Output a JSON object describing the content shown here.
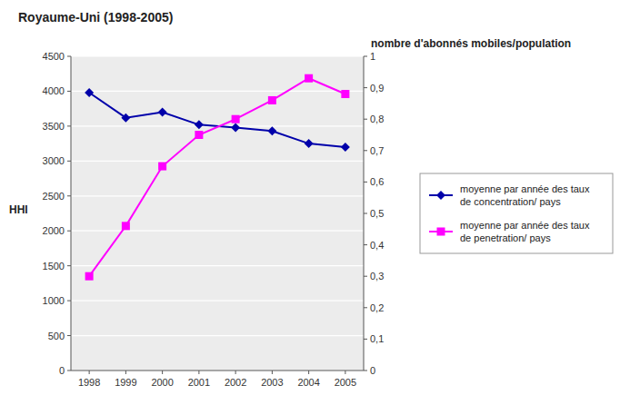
{
  "chart_data": {
    "type": "line",
    "title": "Royaume-Uni (1998-2005)",
    "x": [
      1998,
      1999,
      2000,
      2001,
      2002,
      2003,
      2004,
      2005
    ],
    "xlim": [
      1997.5,
      2005.5
    ],
    "xticks": [
      1998,
      1999,
      2000,
      2001,
      2002,
      2003,
      2004,
      2005
    ],
    "ylabel": "HHI",
    "ylim": [
      0,
      4500
    ],
    "yticks": [
      0,
      500,
      1000,
      1500,
      2000,
      2500,
      3000,
      3500,
      4000,
      4500
    ],
    "y2label": "nombre d'abonnés mobiles/population",
    "y2lim": [
      0,
      1
    ],
    "y2ticks": [
      0,
      {
        "value": 0.1,
        "label": "0,1"
      },
      {
        "value": 0.2,
        "label": "0,2"
      },
      {
        "value": 0.3,
        "label": "0,3"
      },
      {
        "value": 0.4,
        "label": "0,4"
      },
      {
        "value": 0.5,
        "label": "0,5"
      },
      {
        "value": 0.6,
        "label": "0,6"
      },
      {
        "value": 0.7,
        "label": "0,7"
      },
      {
        "value": 0.8,
        "label": "0,8"
      },
      {
        "value": 0.9,
        "label": "0,9"
      },
      1
    ],
    "grid": true,
    "legend": "right",
    "series": [
      {
        "name": "moyenne par année des taux\nde concentration/ pays",
        "color": "#0000AA",
        "marker": "diamond",
        "line_style": "solid",
        "values": [
          3980,
          3620,
          3700,
          3520,
          3480,
          3430,
          3250,
          3200
        ]
      },
      {
        "name": "moyenne par année des taux\nde penetration/ pays",
        "color": "#FF00FF",
        "marker": "square",
        "line_style": "solid",
        "axis": "y2",
        "values": [
          0.3,
          0.46,
          0.65,
          0.75,
          0.8,
          0.86,
          0.93,
          0.88
        ]
      }
    ]
  }
}
